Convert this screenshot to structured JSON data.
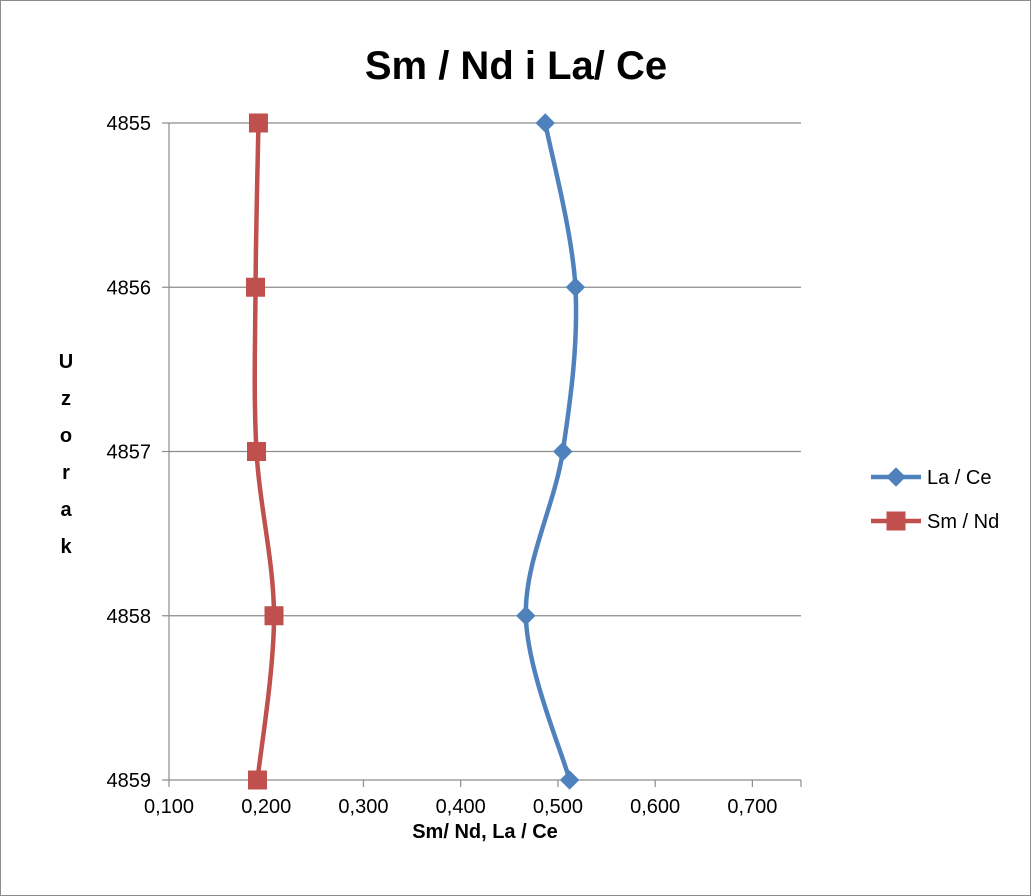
{
  "chart_data": {
    "type": "line",
    "title": "Sm / Nd i La/ Ce",
    "xlabel": "Sm/ Nd, La / Ce",
    "ylabel": "Uzorak",
    "xlim": [
      0.1,
      0.75
    ],
    "x_ticks": [
      "0,100",
      "0,200",
      "0,300",
      "0,400",
      "0,500",
      "0,600",
      "0,700"
    ],
    "x_tick_values": [
      0.1,
      0.2,
      0.3,
      0.4,
      0.5,
      0.6,
      0.7
    ],
    "y_categories": [
      "4855",
      "4856",
      "4857",
      "4858",
      "4859"
    ],
    "y_reversed": true,
    "smooth": true,
    "grid": "horizontal",
    "legend_position": "right",
    "series": [
      {
        "name": "La / Ce",
        "color": "#4f81bd",
        "marker": "diamond",
        "values": [
          0.487,
          0.518,
          0.505,
          0.467,
          0.512
        ]
      },
      {
        "name": "Sm / Nd",
        "color": "#c0504d",
        "marker": "square",
        "values": [
          0.192,
          0.189,
          0.19,
          0.208,
          0.191
        ]
      }
    ]
  }
}
